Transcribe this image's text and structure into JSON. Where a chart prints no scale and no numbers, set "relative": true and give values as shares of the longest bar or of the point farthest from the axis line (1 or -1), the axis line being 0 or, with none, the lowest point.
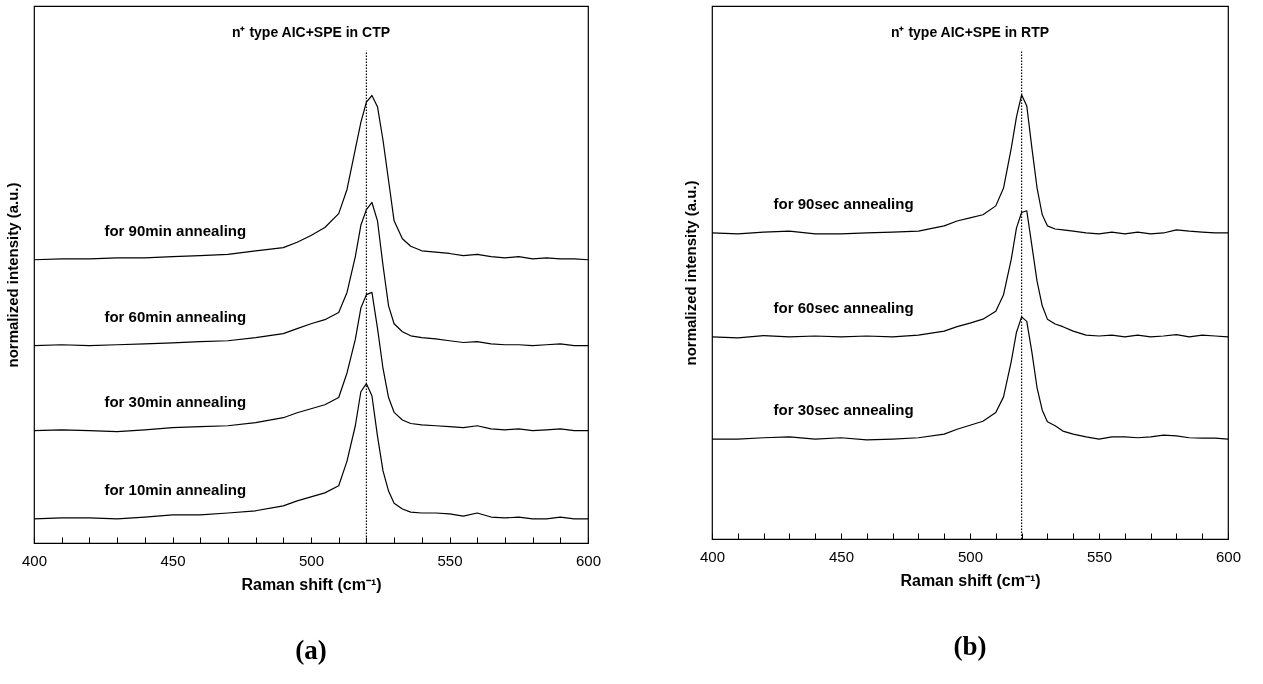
{
  "chart_data": [
    {
      "type": "line",
      "title": "n⁺ type AIC+SPE in CTP",
      "xlabel": "Raman shift (cm⁻¹)",
      "ylabel": "normalized intensity (a.u.)",
      "annotations": [
        "(a)"
      ],
      "relative": true,
      "x": [
        400,
        410,
        420,
        430,
        440,
        450,
        460,
        470,
        480,
        490,
        495,
        500,
        505,
        510,
        513,
        516,
        518,
        520,
        522,
        524,
        526,
        528,
        530,
        533,
        536,
        540,
        545,
        550,
        555,
        560,
        565,
        570,
        575,
        580,
        585,
        590,
        595,
        600
      ],
      "xlim": [
        400,
        600
      ],
      "xticks": [
        400,
        {
          "value": 410,
          "label": null
        },
        {
          "value": 420,
          "label": null
        },
        {
          "value": 430,
          "label": null
        },
        {
          "value": 440,
          "label": null
        },
        450,
        {
          "value": 460,
          "label": null
        },
        {
          "value": 470,
          "label": null
        },
        {
          "value": 480,
          "label": null
        },
        {
          "value": 490,
          "label": null
        },
        500,
        {
          "value": 510,
          "label": null
        },
        {
          "value": 520,
          "label": null
        },
        {
          "value": 530,
          "label": null
        },
        {
          "value": 540,
          "label": null
        },
        550,
        {
          "value": 560,
          "label": null
        },
        {
          "value": 570,
          "label": null
        },
        {
          "value": 580,
          "label": null
        },
        {
          "value": 590,
          "label": null
        },
        600
      ],
      "series": [
        {
          "name": "for 10min annealing",
          "color": "#000000",
          "values": [
            0.054,
            0.056,
            0.056,
            0.054,
            0.058,
            0.063,
            0.063,
            0.067,
            0.072,
            0.083,
            0.094,
            0.103,
            0.112,
            0.128,
            0.183,
            0.262,
            0.338,
            0.356,
            0.329,
            0.239,
            0.161,
            0.116,
            0.089,
            0.076,
            0.069,
            0.067,
            0.067,
            0.065,
            0.06,
            0.067,
            0.058,
            0.056,
            0.058,
            0.054,
            0.054,
            0.058,
            0.054,
            0.054
          ]
        },
        {
          "name": "for 30min annealing",
          "color": "#000000",
          "values": [
            0.251,
            0.253,
            0.251,
            0.249,
            0.253,
            0.258,
            0.26,
            0.262,
            0.269,
            0.28,
            0.291,
            0.3,
            0.309,
            0.325,
            0.38,
            0.455,
            0.525,
            0.555,
            0.56,
            0.48,
            0.39,
            0.325,
            0.292,
            0.275,
            0.267,
            0.264,
            0.262,
            0.26,
            0.258,
            0.262,
            0.255,
            0.253,
            0.255,
            0.251,
            0.253,
            0.255,
            0.251,
            0.251
          ]
        },
        {
          "name": "for 60min annealing",
          "color": "#000000",
          "values": [
            0.441,
            0.443,
            0.441,
            0.443,
            0.445,
            0.447,
            0.45,
            0.452,
            0.459,
            0.468,
            0.479,
            0.49,
            0.499,
            0.515,
            0.56,
            0.64,
            0.71,
            0.745,
            0.761,
            0.72,
            0.62,
            0.53,
            0.49,
            0.472,
            0.463,
            0.459,
            0.456,
            0.452,
            0.448,
            0.45,
            0.445,
            0.443,
            0.443,
            0.441,
            0.443,
            0.445,
            0.441,
            0.441
          ]
        },
        {
          "name": "for 90min annealing",
          "color": "#000000",
          "values": [
            0.633,
            0.635,
            0.635,
            0.637,
            0.637,
            0.64,
            0.642,
            0.645,
            0.653,
            0.66,
            0.672,
            0.687,
            0.705,
            0.736,
            0.79,
            0.88,
            0.94,
            0.985,
            1.0,
            0.975,
            0.9,
            0.81,
            0.72,
            0.68,
            0.663,
            0.653,
            0.65,
            0.647,
            0.642,
            0.645,
            0.64,
            0.637,
            0.64,
            0.635,
            0.637,
            0.635,
            0.635,
            0.633
          ]
        }
      ],
      "ref_lines": [
        {
          "axis": "x",
          "value": 520,
          "color": "#000000",
          "line_style": "dotted"
        }
      ]
    },
    {
      "type": "line",
      "title": "n⁺ type AIC+SPE in RTP",
      "xlabel": "Raman shift (cm⁻¹)",
      "ylabel": "normalized intensity (a.u.)",
      "annotations": [
        "(b)"
      ],
      "relative": true,
      "x": [
        400,
        410,
        420,
        430,
        440,
        450,
        460,
        470,
        480,
        490,
        495,
        500,
        505,
        510,
        513,
        516,
        518,
        520,
        522,
        524,
        526,
        528,
        530,
        533,
        536,
        540,
        545,
        550,
        555,
        560,
        565,
        570,
        575,
        580,
        585,
        590,
        595,
        600
      ],
      "xlim": [
        400,
        600
      ],
      "xticks": [
        400,
        {
          "value": 410,
          "label": null
        },
        {
          "value": 420,
          "label": null
        },
        {
          "value": 430,
          "label": null
        },
        {
          "value": 440,
          "label": null
        },
        450,
        {
          "value": 460,
          "label": null
        },
        {
          "value": 470,
          "label": null
        },
        {
          "value": 480,
          "label": null
        },
        {
          "value": 490,
          "label": null
        },
        500,
        {
          "value": 510,
          "label": null
        },
        {
          "value": 520,
          "label": null
        },
        {
          "value": 530,
          "label": null
        },
        {
          "value": 540,
          "label": null
        },
        550,
        {
          "value": 560,
          "label": null
        },
        {
          "value": 570,
          "label": null
        },
        {
          "value": 580,
          "label": null
        },
        {
          "value": 590,
          "label": null
        },
        600
      ],
      "series": [
        {
          "name": "for 30sec annealing",
          "color": "#000000",
          "values": [
            0.225,
            0.225,
            0.228,
            0.23,
            0.225,
            0.228,
            0.223,
            0.225,
            0.228,
            0.236,
            0.247,
            0.256,
            0.265,
            0.285,
            0.32,
            0.4,
            0.465,
            0.5,
            0.49,
            0.42,
            0.34,
            0.29,
            0.264,
            0.255,
            0.243,
            0.236,
            0.23,
            0.225,
            0.23,
            0.23,
            0.228,
            0.23,
            0.234,
            0.232,
            0.228,
            0.227,
            0.227,
            0.225
          ]
        },
        {
          "name": "for 60sec annealing",
          "color": "#000000",
          "values": [
            0.455,
            0.453,
            0.458,
            0.455,
            0.457,
            0.455,
            0.457,
            0.455,
            0.459,
            0.468,
            0.478,
            0.486,
            0.495,
            0.513,
            0.55,
            0.63,
            0.7,
            0.735,
            0.739,
            0.66,
            0.58,
            0.525,
            0.495,
            0.484,
            0.478,
            0.468,
            0.459,
            0.457,
            0.459,
            0.455,
            0.459,
            0.455,
            0.457,
            0.46,
            0.455,
            0.459,
            0.457,
            0.455
          ]
        },
        {
          "name": "for 90sec annealing",
          "color": "#000000",
          "values": [
            0.689,
            0.687,
            0.691,
            0.693,
            0.687,
            0.687,
            0.689,
            0.691,
            0.693,
            0.705,
            0.716,
            0.723,
            0.73,
            0.75,
            0.79,
            0.88,
            0.95,
            1.0,
            0.975,
            0.88,
            0.79,
            0.73,
            0.705,
            0.698,
            0.696,
            0.693,
            0.689,
            0.687,
            0.691,
            0.687,
            0.691,
            0.687,
            0.689,
            0.696,
            0.693,
            0.691,
            0.689,
            0.689
          ]
        }
      ],
      "ref_lines": [
        {
          "axis": "x",
          "value": 520,
          "color": "#000000",
          "line_style": "dotted"
        }
      ]
    }
  ]
}
